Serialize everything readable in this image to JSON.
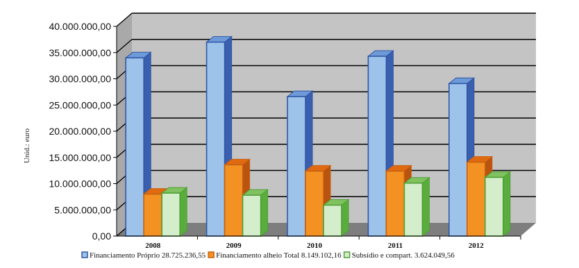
{
  "chart_data": {
    "type": "bar",
    "title": "",
    "xlabel": "",
    "ylabel": "Unid.: euro",
    "categories": [
      "2008",
      "2009",
      "2010",
      "2011",
      "2012"
    ],
    "series": [
      {
        "name": "Financiamento Próprio 28.725.236,55",
        "color": "#9dc3ea",
        "side_color": "#3a5fae",
        "top_color": "#6f9ad8",
        "edge_color": "#2f56a6",
        "values": [
          34000000,
          37000000,
          26600000,
          34300000,
          29100000
        ]
      },
      {
        "name": "Financiamento alheio Total 8.149.102,16",
        "color": "#f39223",
        "side_color": "#b85310",
        "top_color": "#e06a10",
        "edge_color": "#c96010",
        "values": [
          8000000,
          13600000,
          12400000,
          12400000,
          14100000
        ]
      },
      {
        "name": "Subsídio e compart. 3.624.049,56",
        "color": "#d4eecb",
        "side_color": "#58ad3c",
        "top_color": "#7fc25f",
        "edge_color": "#4f9f36",
        "values": [
          8200000,
          7800000,
          5900000,
          10100000,
          11200000
        ]
      }
    ],
    "ylim": [
      0,
      40000000
    ],
    "yticks": [
      0,
      5000000,
      10000000,
      15000000,
      20000000,
      25000000,
      30000000,
      35000000,
      40000000
    ],
    "ytick_labels": [
      "0,00",
      "5.000.000,00",
      "10.000.000,00",
      "15.000.000,00",
      "20.000.000,00",
      "25.000.000,00",
      "30.000.000,00",
      "35.000.000,00",
      "40.000.000,00"
    ],
    "grid": true,
    "legend_position": "bottom",
    "colors": {
      "back_wall": "#c4c4c4",
      "floor": "#7e7e7e",
      "gridline": "#000000"
    }
  }
}
